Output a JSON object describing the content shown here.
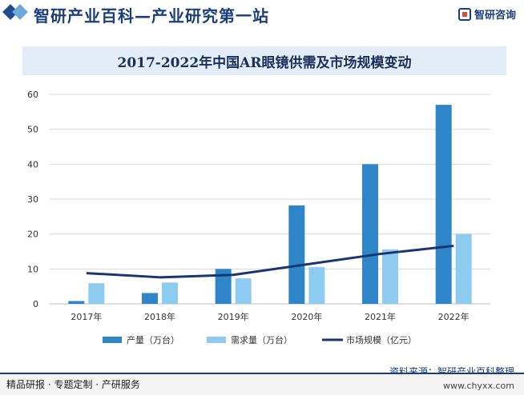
{
  "header": {
    "title": "智研产业百科—产业研究第一站",
    "brand": "智研咨询"
  },
  "footer": {
    "tagline": "精品研报 · 专题定制 · 产研服务",
    "source": "资料来源：智研产业百科整理",
    "url": "www.chyxx.com"
  },
  "colors": {
    "production": "#2e86c8",
    "demand": "#8ecbf0",
    "market": "#1a3575",
    "grid": "#d9d9d9"
  },
  "chart_data": {
    "type": "bar",
    "title": "2017-2022年中国AR眼镜供需及市场规模变动",
    "categories": [
      "2017年",
      "2018年",
      "2019年",
      "2020年",
      "2021年",
      "2022年"
    ],
    "series": [
      {
        "name": "产量（万台）",
        "type": "bar",
        "values": [
          0.8,
          3.1,
          10.0,
          28.2,
          40.0,
          57.0
        ]
      },
      {
        "name": "需求量（万台）",
        "type": "bar",
        "values": [
          5.9,
          6.1,
          7.3,
          10.5,
          15.6,
          20.0
        ]
      },
      {
        "name": "市场规模（亿元）",
        "type": "line",
        "values": [
          8.8,
          7.6,
          8.3,
          11.3,
          14.3,
          16.6
        ]
      }
    ],
    "yticks": [
      0,
      10,
      20,
      30,
      40,
      50,
      60
    ],
    "ylim": [
      0,
      60
    ],
    "xlabel": "",
    "ylabel": "",
    "grid": true,
    "legend": "bottom"
  }
}
